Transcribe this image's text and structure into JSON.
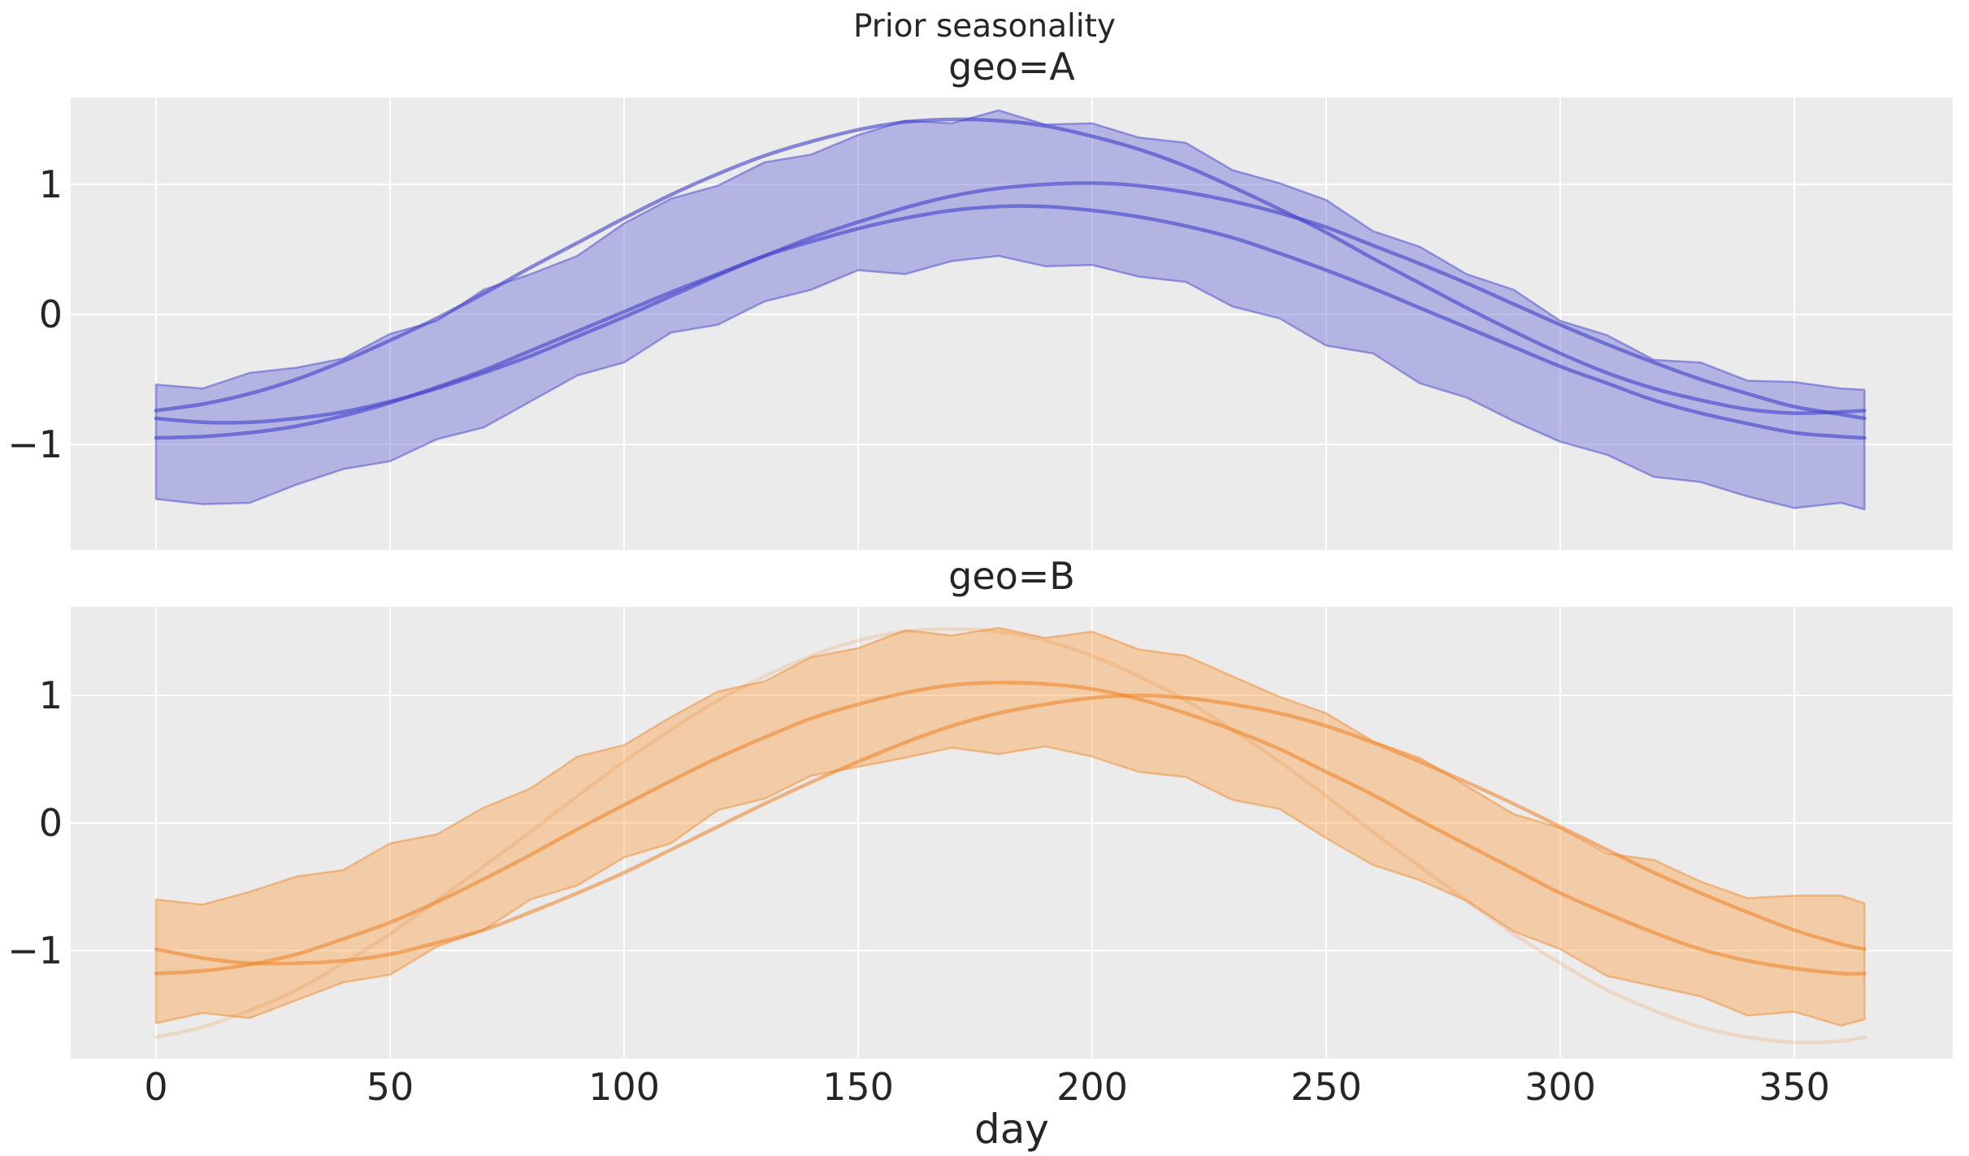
{
  "figure": {
    "title": "Prior seasonality",
    "xlabel": "day",
    "background": "#ffffff"
  },
  "style": {
    "plot_background": "#ebebeb",
    "gridline_color": "#ffffff",
    "text_color": "#262626",
    "palettes": {
      "blue": {
        "line": "rgba(68,68,204,0.62)",
        "fill": "rgba(112,112,216,0.45)",
        "edge": "rgba(84,84,208,0.55)"
      },
      "orange": {
        "line": "rgba(238,130,35,0.55)",
        "fill": "rgba(250,162,74,0.42)",
        "edge": "rgba(240,140,50,0.5)"
      }
    }
  },
  "axes": {
    "xticks": {
      "values": [
        0,
        50,
        100,
        150,
        200,
        250,
        300,
        350
      ],
      "labels": [
        "0",
        "50",
        "100",
        "150",
        "200",
        "250",
        "300",
        "350"
      ]
    },
    "yticks": {
      "values": [
        1,
        0,
        -1
      ],
      "labels": [
        "1",
        "0",
        "−1"
      ]
    },
    "grid": true
  },
  "chart_data": [
    {
      "type": "line",
      "geo": "A",
      "title": "geo=A",
      "color_key": "blue",
      "xlabel": "day",
      "xlim": [
        -18.25,
        383.25
      ],
      "ylim": [
        -1.81,
        1.67
      ],
      "x": [
        0,
        10,
        20,
        30,
        40,
        50,
        60,
        70,
        80,
        90,
        100,
        110,
        120,
        130,
        140,
        150,
        160,
        170,
        180,
        190,
        200,
        210,
        220,
        230,
        240,
        250,
        260,
        270,
        280,
        290,
        300,
        310,
        320,
        330,
        340,
        350,
        360,
        365
      ],
      "band": {
        "upper": [
          -0.54,
          -0.57,
          -0.45,
          -0.41,
          -0.34,
          -0.15,
          -0.05,
          0.19,
          0.31,
          0.45,
          0.7,
          0.89,
          0.99,
          1.17,
          1.23,
          1.38,
          1.49,
          1.47,
          1.57,
          1.46,
          1.47,
          1.36,
          1.32,
          1.11,
          1.01,
          0.88,
          0.64,
          0.52,
          0.31,
          0.19,
          -0.05,
          -0.16,
          -0.35,
          -0.37,
          -0.51,
          -0.52,
          -0.57,
          -0.58
        ],
        "lower": [
          -1.42,
          -1.46,
          -1.45,
          -1.31,
          -1.19,
          -1.13,
          -0.96,
          -0.87,
          -0.67,
          -0.47,
          -0.37,
          -0.14,
          -0.08,
          0.1,
          0.19,
          0.34,
          0.31,
          0.41,
          0.45,
          0.37,
          0.38,
          0.29,
          0.25,
          0.06,
          -0.03,
          -0.24,
          -0.3,
          -0.53,
          -0.64,
          -0.82,
          -0.98,
          -1.08,
          -1.25,
          -1.29,
          -1.4,
          -1.49,
          -1.45,
          -1.5
        ]
      },
      "samples": [
        {
          "name": "prior-sample-1",
          "opacity": 1,
          "values": [
            -0.74,
            -0.69,
            -0.61,
            -0.5,
            -0.36,
            -0.2,
            -0.03,
            0.16,
            0.36,
            0.55,
            0.74,
            0.92,
            1.08,
            1.22,
            1.33,
            1.42,
            1.48,
            1.5,
            1.49,
            1.45,
            1.37,
            1.27,
            1.14,
            0.98,
            0.81,
            0.63,
            0.43,
            0.24,
            0.05,
            -0.13,
            -0.3,
            -0.45,
            -0.57,
            -0.66,
            -0.73,
            -0.76,
            -0.75,
            -0.74
          ]
        },
        {
          "name": "prior-sample-2",
          "opacity": 1,
          "values": [
            -0.8,
            -0.83,
            -0.83,
            -0.8,
            -0.75,
            -0.67,
            -0.57,
            -0.45,
            -0.32,
            -0.17,
            -0.02,
            0.14,
            0.3,
            0.45,
            0.59,
            0.71,
            0.82,
            0.91,
            0.97,
            1.0,
            1.01,
            0.99,
            0.94,
            0.87,
            0.78,
            0.67,
            0.53,
            0.39,
            0.24,
            0.08,
            -0.08,
            -0.23,
            -0.37,
            -0.5,
            -0.61,
            -0.71,
            -0.77,
            -0.8
          ]
        },
        {
          "name": "prior-sample-3",
          "opacity": 1,
          "values": [
            -0.95,
            -0.94,
            -0.91,
            -0.86,
            -0.78,
            -0.68,
            -0.56,
            -0.43,
            -0.28,
            -0.13,
            0.02,
            0.17,
            0.31,
            0.45,
            0.56,
            0.66,
            0.74,
            0.8,
            0.83,
            0.83,
            0.8,
            0.75,
            0.68,
            0.59,
            0.47,
            0.34,
            0.2,
            0.05,
            -0.1,
            -0.25,
            -0.4,
            -0.53,
            -0.66,
            -0.76,
            -0.84,
            -0.91,
            -0.94,
            -0.95
          ]
        }
      ]
    },
    {
      "type": "line",
      "geo": "B",
      "title": "geo=B",
      "color_key": "orange",
      "xlabel": "day",
      "xlim": [
        -18.25,
        383.25
      ],
      "ylim": [
        -1.85,
        1.69
      ],
      "x": [
        0,
        10,
        20,
        30,
        40,
        50,
        60,
        70,
        80,
        90,
        100,
        110,
        120,
        130,
        140,
        150,
        160,
        170,
        180,
        190,
        200,
        210,
        220,
        230,
        240,
        250,
        260,
        270,
        280,
        290,
        300,
        310,
        320,
        330,
        340,
        350,
        360,
        365
      ],
      "band": {
        "upper": [
          -0.6,
          -0.64,
          -0.54,
          -0.42,
          -0.37,
          -0.16,
          -0.09,
          0.12,
          0.27,
          0.52,
          0.61,
          0.83,
          1.03,
          1.11,
          1.3,
          1.37,
          1.51,
          1.47,
          1.53,
          1.45,
          1.5,
          1.36,
          1.31,
          1.15,
          0.99,
          0.86,
          0.64,
          0.51,
          0.29,
          0.07,
          -0.04,
          -0.24,
          -0.29,
          -0.46,
          -0.59,
          -0.57,
          -0.57,
          -0.63
        ],
        "lower": [
          -1.57,
          -1.49,
          -1.53,
          -1.39,
          -1.25,
          -1.19,
          -0.97,
          -0.84,
          -0.6,
          -0.49,
          -0.27,
          -0.16,
          0.1,
          0.19,
          0.37,
          0.44,
          0.51,
          0.59,
          0.54,
          0.6,
          0.52,
          0.4,
          0.36,
          0.18,
          0.11,
          -0.12,
          -0.33,
          -0.45,
          -0.61,
          -0.85,
          -0.99,
          -1.2,
          -1.28,
          -1.36,
          -1.51,
          -1.48,
          -1.59,
          -1.54
        ]
      },
      "samples": [
        {
          "name": "prior-sample-1",
          "opacity": 1,
          "values": [
            -0.99,
            -1.06,
            -1.1,
            -1.1,
            -1.08,
            -1.03,
            -0.94,
            -0.84,
            -0.7,
            -0.55,
            -0.39,
            -0.21,
            -0.03,
            0.15,
            0.32,
            0.48,
            0.63,
            0.76,
            0.86,
            0.93,
            0.98,
            1.0,
            0.98,
            0.93,
            0.86,
            0.76,
            0.63,
            0.48,
            0.32,
            0.15,
            -0.03,
            -0.21,
            -0.39,
            -0.55,
            -0.7,
            -0.84,
            -0.95,
            -0.99
          ]
        },
        {
          "name": "prior-sample-2",
          "opacity": 1,
          "values": [
            -1.18,
            -1.16,
            -1.11,
            -1.03,
            -0.91,
            -0.78,
            -0.62,
            -0.44,
            -0.25,
            -0.05,
            0.14,
            0.33,
            0.51,
            0.67,
            0.82,
            0.93,
            1.02,
            1.08,
            1.1,
            1.09,
            1.05,
            0.97,
            0.86,
            0.73,
            0.58,
            0.4,
            0.22,
            0.02,
            -0.17,
            -0.36,
            -0.55,
            -0.71,
            -0.86,
            -0.99,
            -1.08,
            -1.14,
            -1.18,
            -1.18
          ]
        },
        {
          "name": "prior-sample-3",
          "opacity": 0.35,
          "values": [
            -1.68,
            -1.6,
            -1.47,
            -1.31,
            -1.1,
            -0.87,
            -0.61,
            -0.34,
            -0.07,
            0.21,
            0.48,
            0.73,
            0.96,
            1.15,
            1.31,
            1.43,
            1.5,
            1.52,
            1.5,
            1.43,
            1.31,
            1.15,
            0.96,
            0.73,
            0.48,
            0.21,
            -0.07,
            -0.34,
            -0.61,
            -0.87,
            -1.1,
            -1.31,
            -1.47,
            -1.6,
            -1.68,
            -1.72,
            -1.71,
            -1.68
          ]
        }
      ]
    }
  ]
}
